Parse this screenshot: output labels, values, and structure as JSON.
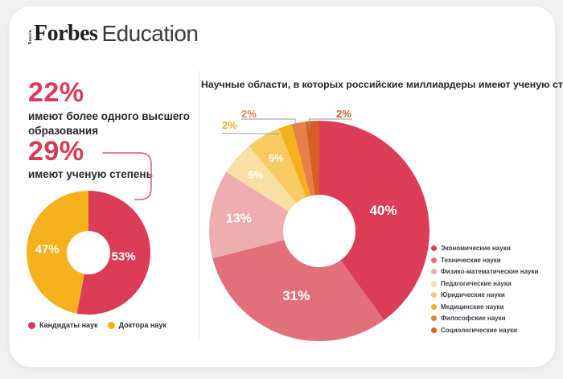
{
  "colors": {
    "accent": "#d93a57",
    "page_bg": "#f0f0f1",
    "card_bg": "#ffffff",
    "divider": "#dddddd",
    "callout_line": "#999999",
    "connector": "#e25672"
  },
  "logo": {
    "region": "Russia",
    "brand": "Forbes",
    "suffix": "Education"
  },
  "stats": {
    "stat1": {
      "value": "22%",
      "label": "имеют более одного высшего образования"
    },
    "stat2": {
      "value": "29%",
      "label": "имеют ученую степень"
    }
  },
  "chart_data": [
    {
      "type": "pie",
      "name": "degree-types",
      "donut": true,
      "legend_position": "bottom",
      "labels": [
        "Кандидаты наук",
        "Доктора наук"
      ],
      "values": [
        53,
        47
      ],
      "display": [
        "53%",
        "47%"
      ],
      "colors": [
        "#db3c58",
        "#f5b11e"
      ]
    },
    {
      "type": "pie",
      "name": "science-fields",
      "donut": true,
      "legend_position": "right",
      "title": "Научные области, в которых российские миллиардеры имеют ученую степень",
      "labels": [
        "Экономические науки",
        "Технические науки",
        "Физико-математические науки",
        "Педагогические науки",
        "Юридические науки",
        "Медицинские науки",
        "Философские науки",
        "Социологические науки"
      ],
      "values": [
        40,
        31,
        13,
        5,
        5,
        2,
        2,
        2
      ],
      "display": [
        "40%",
        "31%",
        "13%",
        "5%",
        "5%",
        "2%",
        "2%",
        "2%"
      ],
      "colors": [
        "#db3c58",
        "#e1707b",
        "#edacaf",
        "#f8e0a4",
        "#f7ca63",
        "#f5b01e",
        "#e67f49",
        "#d65d26"
      ]
    }
  ]
}
